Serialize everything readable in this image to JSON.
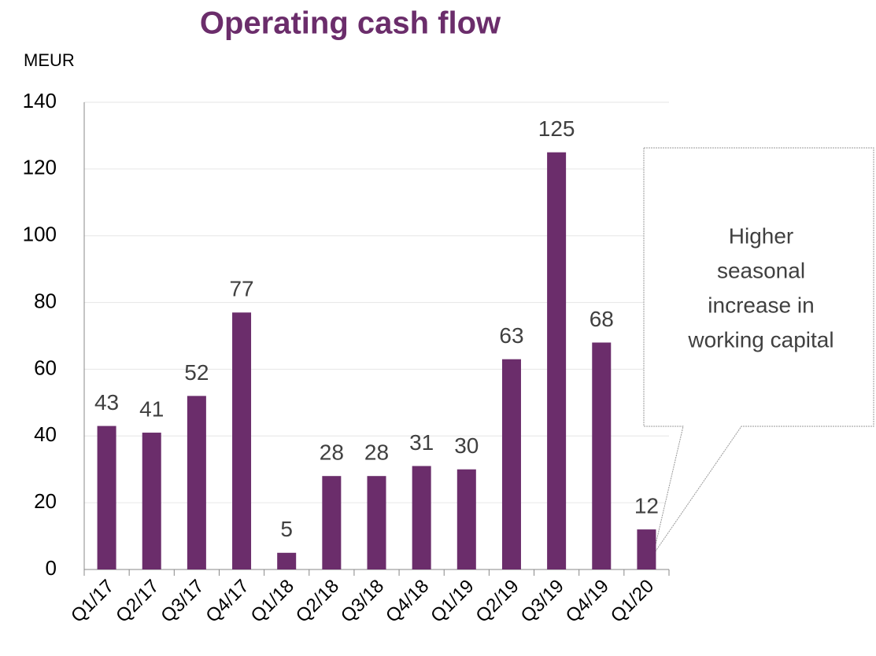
{
  "chart_data": {
    "type": "bar",
    "title": "Operating cash flow",
    "y_label": "MEUR",
    "categories": [
      "Q1/17",
      "Q2/17",
      "Q3/17",
      "Q4/17",
      "Q1/18",
      "Q2/18",
      "Q3/18",
      "Q4/18",
      "Q1/19",
      "Q2/19",
      "Q3/19",
      "Q4/19",
      "Q1/20"
    ],
    "values": [
      43,
      41,
      52,
      77,
      5,
      28,
      28,
      31,
      30,
      63,
      125,
      68,
      12
    ],
    "color": "#6b2d6b",
    "ylim": [
      0,
      140
    ],
    "yticks": [
      0,
      20,
      40,
      60,
      80,
      100,
      120,
      140
    ],
    "grid": true,
    "annotation": [
      "Higher",
      "seasonal",
      "increase in",
      "working capital"
    ]
  }
}
